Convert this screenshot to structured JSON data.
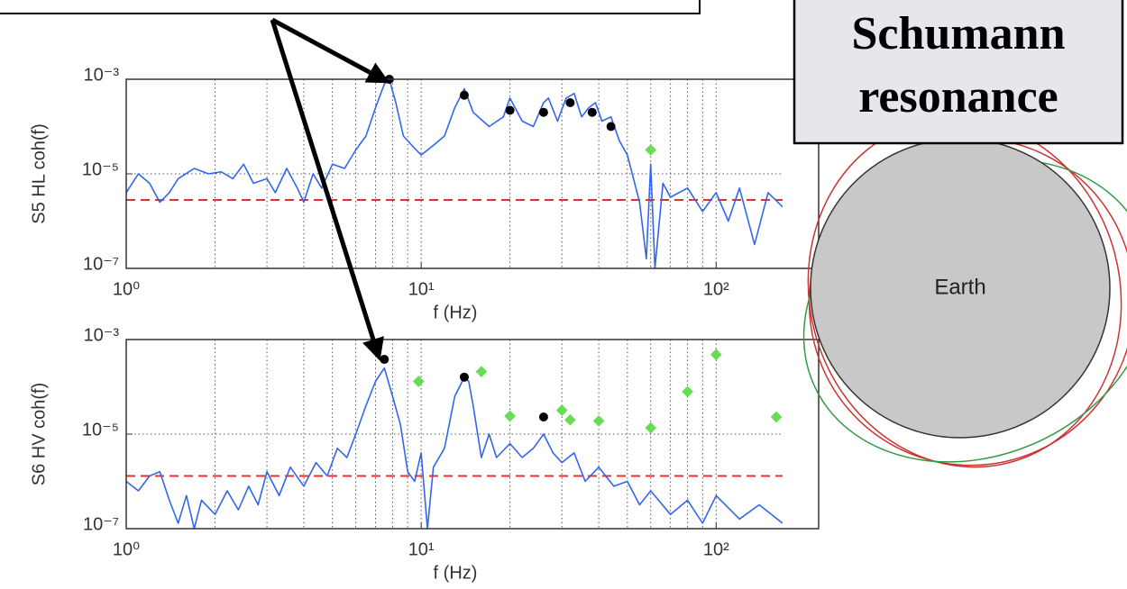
{
  "chart_data": [
    {
      "type": "line",
      "xscale": "log",
      "yscale": "log",
      "xlabel": "f (Hz)",
      "ylabel": "S5 HL coh(f)",
      "color": "#3366ee",
      "grid": true,
      "xlim": [
        1,
        168
      ],
      "ylim": [
        1e-07,
        0.001
      ],
      "xticks": [
        {
          "value": 1,
          "label": "10⁰"
        },
        {
          "value": 10,
          "label": "10¹"
        },
        {
          "value": 100,
          "label": "10²"
        }
      ],
      "xgrid": [
        2,
        3,
        4,
        5,
        6,
        7,
        8,
        9,
        10,
        20,
        30,
        40,
        50,
        60,
        70,
        80,
        90,
        100
      ],
      "yticks": [
        {
          "value": 1e-07,
          "label": "10⁻⁷"
        },
        {
          "value": 1e-05,
          "label": "10⁻⁵"
        },
        {
          "value": 0.001,
          "label": "10⁻³"
        }
      ],
      "threshold": 2.8e-06,
      "threshold_color": "#dd3333",
      "x": [
        1,
        1.1,
        1.2,
        1.3,
        1.4,
        1.5,
        1.7,
        1.9,
        2.1,
        2.3,
        2.5,
        2.7,
        3,
        3.2,
        3.5,
        3.8,
        4,
        4.3,
        4.6,
        5,
        5.5,
        6,
        6.5,
        7,
        7.5,
        7.8,
        8.2,
        8.7,
        9.3,
        10,
        11,
        12,
        13,
        14,
        15,
        17,
        19,
        20,
        22,
        24,
        26,
        27,
        29,
        31,
        33,
        35,
        37,
        39,
        41,
        44,
        47,
        50,
        55,
        58,
        60,
        62,
        66,
        70,
        80,
        90,
        100,
        110,
        120,
        135,
        150,
        168
      ],
      "values": [
        4e-06,
        1e-05,
        6.3e-06,
        2.5e-06,
        4e-06,
        7.9e-06,
        1.3e-05,
        1e-05,
        1.1e-05,
        7.9e-06,
        1.6e-05,
        6.3e-06,
        7.9e-06,
        4e-06,
        1.3e-05,
        5e-06,
        2.5e-06,
        1e-05,
        5e-06,
        1.6e-05,
        1.3e-05,
        3.2e-05,
        6.3e-05,
        0.00025,
        0.00079,
        0.001,
        0.00032,
        6.3e-05,
        4e-05,
        2.5e-05,
        4e-05,
        6.3e-05,
        0.00025,
        0.00063,
        0.0002,
        0.0001,
        0.00016,
        0.0004,
        0.00013,
        0.0001,
        0.00032,
        0.0004,
        0.00013,
        0.0004,
        0.0005,
        0.00016,
        0.00025,
        0.00032,
        0.00013,
        0.00016,
        5e-05,
        2.5e-05,
        2.5e-06,
        1.6e-07,
        1.6e-05,
        1e-07,
        6.3e-06,
        3.2e-06,
        5e-06,
        1.6e-06,
        4e-06,
        1e-06,
        5e-06,
        3.2e-07,
        4e-06,
        2e-06
      ],
      "peaks": {
        "color": "#000000",
        "x": [
          7.8,
          14,
          20,
          26,
          32,
          38,
          44
        ],
        "values": [
          0.001,
          0.00046,
          0.00022,
          0.0002,
          0.00032,
          0.0002,
          0.0001
        ]
      },
      "lines": {
        "color": "#66dd55",
        "x": [
          60
        ],
        "values": [
          3.2e-05
        ]
      }
    },
    {
      "type": "line",
      "xscale": "log",
      "yscale": "log",
      "xlabel": "f (Hz)",
      "ylabel": "S6 HV coh(f)",
      "color": "#3366ee",
      "grid": true,
      "xlim": [
        1,
        168
      ],
      "ylim": [
        1e-07,
        0.001
      ],
      "xticks": [
        {
          "value": 1,
          "label": "10⁰"
        },
        {
          "value": 10,
          "label": "10¹"
        },
        {
          "value": 100,
          "label": "10²"
        }
      ],
      "xgrid": [
        2,
        3,
        4,
        5,
        6,
        7,
        8,
        9,
        10,
        20,
        30,
        40,
        50,
        60,
        70,
        80,
        90,
        100
      ],
      "yticks": [
        {
          "value": 1e-07,
          "label": "10⁻⁷"
        },
        {
          "value": 1e-05,
          "label": "10⁻⁵"
        },
        {
          "value": 0.001,
          "label": "10⁻³"
        }
      ],
      "threshold": 1.3e-06,
      "threshold_color": "#dd3333",
      "x": [
        1,
        1.1,
        1.2,
        1.3,
        1.4,
        1.5,
        1.6,
        1.7,
        1.8,
        2,
        2.2,
        2.4,
        2.6,
        2.8,
        3,
        3.3,
        3.6,
        4,
        4.4,
        4.8,
        5.2,
        5.6,
        6,
        6.5,
        7,
        7.5,
        8,
        8.5,
        9,
        9.5,
        10,
        10.5,
        11,
        12,
        13,
        14,
        14.5,
        15,
        16,
        17,
        18,
        20,
        22,
        24,
        26,
        28,
        30,
        33,
        36,
        40,
        45,
        50,
        55,
        60,
        70,
        80,
        90,
        100,
        120,
        140,
        168
      ],
      "values": [
        1e-06,
        6.3e-07,
        1.3e-06,
        1.6e-06,
        4e-07,
        1.3e-07,
        5e-07,
        1e-07,
        4e-07,
        2e-07,
        6.3e-07,
        2.5e-07,
        7.9e-07,
        3.2e-07,
        1.6e-06,
        5e-07,
        2e-06,
        7.9e-07,
        2.5e-06,
        1.3e-06,
        5e-06,
        3.2e-06,
        1e-05,
        4e-05,
        0.00013,
        0.00025,
        6.3e-05,
        1.6e-05,
        1.6e-06,
        1e-06,
        4e-06,
        1e-07,
        2e-06,
        5e-06,
        6.3e-05,
        0.00016,
        0.00013,
        4e-05,
        3.2e-06,
        1e-05,
        3.2e-06,
        6.3e-06,
        3.2e-06,
        5e-06,
        1e-05,
        4e-06,
        2.5e-06,
        4e-06,
        1e-06,
        2e-06,
        7.9e-07,
        1e-06,
        3.2e-07,
        6.3e-07,
        2e-07,
        4e-07,
        1.3e-07,
        5e-07,
        1.6e-07,
        3.2e-07,
        1.3e-07
      ],
      "peaks": {
        "color": "#000000",
        "x": [
          7.5,
          14,
          26
        ],
        "values": [
          0.00038,
          0.00016,
          2.3e-05
        ]
      },
      "lines": {
        "color": "#66dd55",
        "x": [
          9.8,
          16,
          20,
          30,
          32,
          40,
          60,
          80,
          100,
          160
        ],
        "values": [
          0.00013,
          0.00021,
          2.4e-05,
          3.2e-05,
          2e-05,
          1.9e-05,
          1.35e-05,
          7.9e-05,
          0.00048,
          2.3e-05
        ]
      }
    }
  ],
  "label_box": {
    "lines": [
      "Schumann",
      "resonance"
    ]
  },
  "diagram": {
    "label": "Earth"
  }
}
